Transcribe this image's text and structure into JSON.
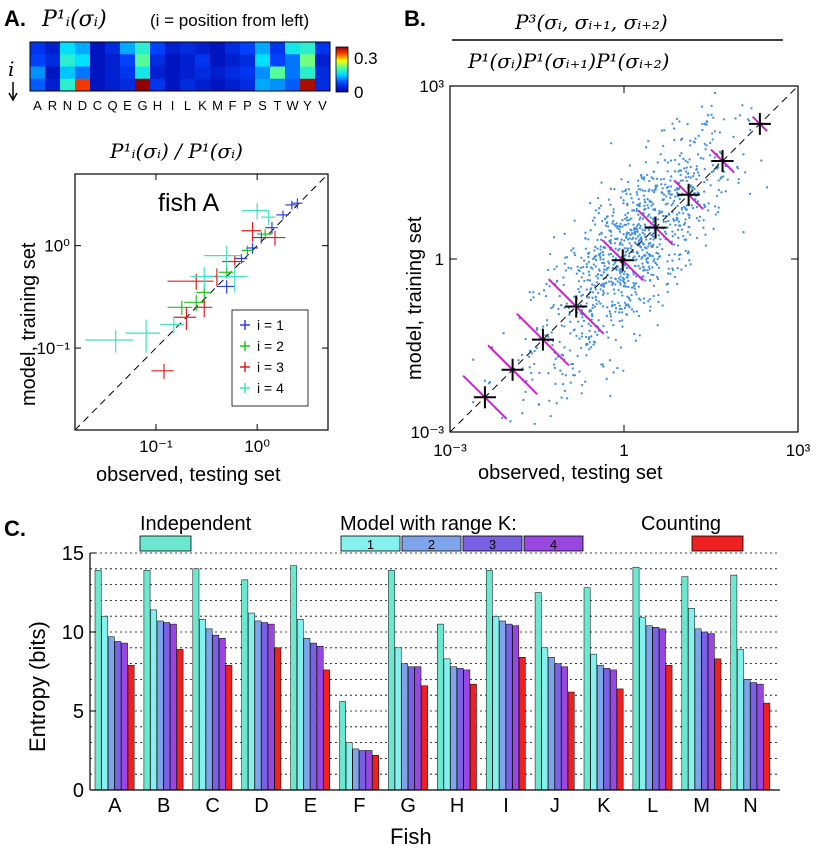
{
  "panels": {
    "a_label": "A.",
    "b_label": "B.",
    "c_label": "C."
  },
  "chart_data": [
    {
      "id": "heatmap",
      "type": "heatmap",
      "title_math": "P¹ᵢ(σᵢ)",
      "title_note": "(i = position from left)",
      "ylabel": "i",
      "amino_acids": [
        "A",
        "R",
        "N",
        "D",
        "C",
        "Q",
        "E",
        "G",
        "H",
        "I",
        "L",
        "K",
        "M",
        "F",
        "P",
        "S",
        "T",
        "W",
        "Y",
        "V"
      ],
      "rows": [
        [
          0.05,
          0.03,
          0.12,
          0.1,
          0.02,
          0.04,
          0.1,
          0.14,
          0.06,
          0.03,
          0.04,
          0.03,
          0.02,
          0.04,
          0.06,
          0.1,
          0.05,
          0.13,
          0.14,
          0.05
        ],
        [
          0.06,
          0.04,
          0.14,
          0.12,
          0.02,
          0.03,
          0.06,
          0.16,
          0.04,
          0.02,
          0.03,
          0.05,
          0.02,
          0.03,
          0.04,
          0.12,
          0.06,
          0.08,
          0.17,
          0.03
        ],
        [
          0.09,
          0.02,
          0.11,
          0.08,
          0.02,
          0.03,
          0.05,
          0.13,
          0.03,
          0.02,
          0.03,
          0.04,
          0.03,
          0.04,
          0.05,
          0.09,
          0.16,
          0.08,
          0.14,
          0.04
        ],
        [
          0.07,
          0.03,
          0.14,
          0.26,
          0.02,
          0.03,
          0.04,
          0.3,
          0.05,
          0.02,
          0.04,
          0.03,
          0.02,
          0.03,
          0.04,
          0.1,
          0.09,
          0.07,
          0.29,
          0.04
        ]
      ],
      "colorbar_min": "0",
      "colorbar_max": "0.3"
    },
    {
      "id": "scatter_a",
      "type": "scatter",
      "title_math": "P¹ᵢ(σᵢ) / P¹(σᵢ)",
      "annotation": "fish A",
      "xlabel": "observed, testing set",
      "ylabel": "model, training set",
      "x_ticks": [
        "10⁻¹",
        "10⁰"
      ],
      "y_ticks": [
        "10⁻¹",
        "10⁰"
      ],
      "xlim_log10": [
        -1.8,
        0.7
      ],
      "ylim_log10": [
        -1.8,
        0.7
      ],
      "series": [
        {
          "name": "i = 1",
          "color": "#3040e0",
          "points": [
            [
              0.9,
              0.95,
              0.12,
              0.12
            ],
            [
              1.4,
              1.5,
              0.2,
              0.2
            ],
            [
              1.8,
              2.0,
              0.25,
              0.2
            ],
            [
              2.2,
              2.5,
              0.3,
              0.25
            ],
            [
              0.5,
              0.4,
              0.1,
              0.06
            ],
            [
              1.1,
              1.2,
              0.2,
              0.15
            ],
            [
              0.7,
              0.75,
              0.1,
              0.08
            ],
            [
              2.5,
              2.6,
              0.3,
              0.3
            ]
          ]
        },
        {
          "name": "i = 2",
          "color": "#20c020",
          "points": [
            [
              0.18,
              0.25,
              0.05,
              0.04
            ],
            [
              0.25,
              0.28,
              0.06,
              0.05
            ],
            [
              0.3,
              0.35,
              0.05,
              0.05
            ],
            [
              0.5,
              0.55,
              0.08,
              0.07
            ],
            [
              0.8,
              0.9,
              0.1,
              0.1
            ],
            [
              1.2,
              1.3,
              0.2,
              0.15
            ]
          ]
        },
        {
          "name": "i = 3",
          "color": "#e02020",
          "points": [
            [
              0.12,
              0.06,
              0.03,
              0.01
            ],
            [
              0.2,
              0.2,
              0.05,
              0.05
            ],
            [
              0.4,
              0.5,
              0.1,
              0.1
            ],
            [
              0.25,
              0.45,
              0.12,
              0.08
            ],
            [
              1.5,
              1.2,
              0.4,
              0.2
            ],
            [
              0.6,
              0.7,
              0.15,
              0.1
            ],
            [
              0.9,
              1.4,
              0.2,
              0.3
            ],
            [
              0.3,
              0.25,
              0.06,
              0.05
            ]
          ]
        },
        {
          "name": "i = 4",
          "color": "#40e0c0",
          "points": [
            [
              0.04,
              0.12,
              0.02,
              0.03
            ],
            [
              0.08,
              0.14,
              0.03,
              0.05
            ],
            [
              0.3,
              0.5,
              0.08,
              0.12
            ],
            [
              0.5,
              0.8,
              0.2,
              0.2
            ],
            [
              0.6,
              0.5,
              0.2,
              0.15
            ],
            [
              1.0,
              2.2,
              0.3,
              0.4
            ],
            [
              1.3,
              1.9,
              0.2,
              0.3
            ],
            [
              0.15,
              0.17,
              0.04,
              0.03
            ]
          ]
        }
      ]
    },
    {
      "id": "scatter_b",
      "type": "scatter",
      "title_numerator": "P³(σᵢ, σᵢ₊₁, σᵢ₊₂)",
      "title_denominator": "P¹(σᵢ)P¹(σᵢ₊₁)P¹(σᵢ₊₂)",
      "xlabel": "observed, testing set",
      "ylabel": "model, training set",
      "x_ticks": [
        "10⁻³",
        "1",
        "10³"
      ],
      "y_ticks": [
        "10⁻³",
        "1",
        "10³"
      ],
      "xlim_log10": [
        -3,
        3
      ],
      "ylim_log10": [
        -3,
        3
      ],
      "scatter_color": "#4090e0",
      "binned": [
        {
          "x": 0.004,
          "y": 0.004,
          "spread_log10": 0.75
        },
        {
          "x": 0.012,
          "y": 0.012,
          "spread_log10": 0.85
        },
        {
          "x": 0.04,
          "y": 0.04,
          "spread_log10": 0.9
        },
        {
          "x": 0.15,
          "y": 0.15,
          "spread_log10": 0.95
        },
        {
          "x": 0.95,
          "y": 0.95,
          "spread_log10": 0.7
        },
        {
          "x": 3.5,
          "y": 3.5,
          "spread_log10": 0.6
        },
        {
          "x": 13,
          "y": 13,
          "spread_log10": 0.5
        },
        {
          "x": 50,
          "y": 50,
          "spread_log10": 0.4
        },
        {
          "x": 220,
          "y": 220,
          "spread_log10": 0.25
        }
      ],
      "bin_error_color": "#d020d0"
    },
    {
      "id": "entropy",
      "type": "bar",
      "xlabel": "Fish",
      "ylabel": "Entropy (bits)",
      "ylim": [
        0,
        15
      ],
      "y_ticks": [
        "0",
        "5",
        "10",
        "15"
      ],
      "categories": [
        "A",
        "B",
        "C",
        "D",
        "E",
        "F",
        "G",
        "H",
        "I",
        "J",
        "K",
        "L",
        "M",
        "N"
      ],
      "legend": {
        "independent_label": "Independent",
        "model_label": "Model with range K:",
        "counting_label": "Counting",
        "model_keys": [
          "1",
          "2",
          "3",
          "4"
        ]
      },
      "series": [
        {
          "name": "Independent",
          "color": "#6de8d0",
          "values": [
            13.9,
            13.9,
            14.0,
            13.3,
            14.2,
            5.6,
            13.9,
            10.5,
            13.9,
            12.5,
            12.8,
            14.1,
            13.5,
            13.6
          ]
        },
        {
          "name": "K=1",
          "color": "#86f0ee",
          "values": [
            11.0,
            11.4,
            10.8,
            11.2,
            10.8,
            3.0,
            9.0,
            8.3,
            11.0,
            9.0,
            8.6,
            10.9,
            11.5,
            8.9
          ]
        },
        {
          "name": "K=2",
          "color": "#7ea5ea",
          "values": [
            9.7,
            10.7,
            10.2,
            10.7,
            9.6,
            2.6,
            8.0,
            7.8,
            10.7,
            8.4,
            7.9,
            10.4,
            10.2,
            7.0
          ]
        },
        {
          "name": "K=3",
          "color": "#7a60e2",
          "values": [
            9.4,
            10.6,
            9.8,
            10.6,
            9.3,
            2.5,
            7.8,
            7.7,
            10.5,
            8.0,
            7.7,
            10.3,
            10.0,
            6.8
          ]
        },
        {
          "name": "K=4",
          "color": "#9848e0",
          "values": [
            9.3,
            10.5,
            9.6,
            10.5,
            9.1,
            2.5,
            7.8,
            7.6,
            10.4,
            7.8,
            7.6,
            10.2,
            9.9,
            6.7
          ]
        },
        {
          "name": "Counting",
          "color": "#ee2020",
          "values": [
            7.9,
            8.9,
            7.9,
            9.0,
            7.6,
            2.2,
            6.6,
            6.7,
            8.4,
            6.2,
            6.4,
            7.9,
            8.3,
            5.5
          ]
        }
      ]
    }
  ]
}
